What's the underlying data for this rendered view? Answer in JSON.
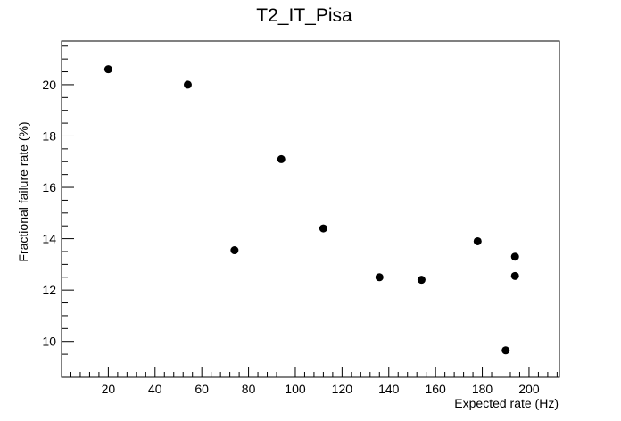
{
  "chart_data": {
    "type": "scatter",
    "title": "T2_IT_Pisa",
    "xlabel": "Expected rate (Hz)",
    "ylabel": "Fractional failure rate (%)",
    "xlim": [
      0,
      213
    ],
    "ylim": [
      8.6,
      21.7
    ],
    "x_ticks": [
      20,
      40,
      60,
      80,
      100,
      120,
      140,
      160,
      180,
      200
    ],
    "y_ticks": [
      10,
      12,
      14,
      16,
      18,
      20
    ],
    "grid": false,
    "legend": "none",
    "marker_color": "#000000",
    "points": [
      {
        "x": 20,
        "y": 20.6
      },
      {
        "x": 54,
        "y": 20.0
      },
      {
        "x": 74,
        "y": 13.55
      },
      {
        "x": 94,
        "y": 17.1
      },
      {
        "x": 112,
        "y": 14.4
      },
      {
        "x": 136,
        "y": 12.5
      },
      {
        "x": 154,
        "y": 12.4
      },
      {
        "x": 178,
        "y": 13.9
      },
      {
        "x": 190,
        "y": 9.65
      },
      {
        "x": 194,
        "y": 13.3
      },
      {
        "x": 194,
        "y": 12.55
      }
    ]
  }
}
